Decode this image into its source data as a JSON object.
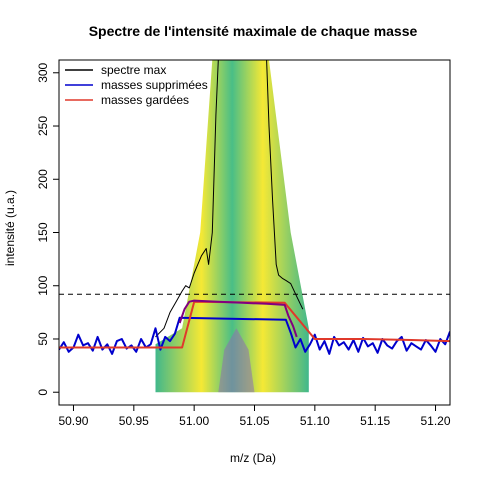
{
  "chart_data": {
    "type": "line",
    "title": "Spectre de l'intensité maximale de chaque masse",
    "xlabel": "m/z (Da)",
    "ylabel": "intensité (u.a.)",
    "xlim": [
      50.888,
      51.212
    ],
    "ylim": [
      -12,
      312
    ],
    "x_ticks": [
      50.9,
      50.95,
      51.0,
      51.05,
      51.1,
      51.15,
      51.2
    ],
    "x_tick_labels": [
      "50.90",
      "50.95",
      "51.00",
      "51.05",
      "51.10",
      "51.15",
      "51.20"
    ],
    "y_ticks": [
      0,
      50,
      100,
      150,
      200,
      250,
      300
    ],
    "y_tick_labels": [
      "0",
      "50",
      "100",
      "150",
      "200",
      "250",
      "300"
    ],
    "threshold": {
      "value": 92,
      "style": "dashed",
      "color": "#000000"
    },
    "legend": {
      "position": "top-left",
      "entries": [
        {
          "label": "spectre max",
          "color": "#000000"
        },
        {
          "label": "masses supprimées",
          "color": "#0000cd"
        },
        {
          "label": "masses gardées",
          "color": "#e0392b"
        }
      ]
    },
    "series": [
      {
        "name": "spectre max",
        "color": "#000000",
        "x": [
          50.968,
          50.975,
          50.98,
          50.985,
          50.99,
          50.993,
          50.996,
          51.0,
          51.003,
          51.006,
          51.01,
          51.012,
          51.015,
          51.018,
          51.02,
          51.03,
          51.05,
          51.06,
          51.062,
          51.065,
          51.068,
          51.07,
          51.073,
          51.076,
          51.08,
          51.085,
          51.09
        ],
        "y": [
          52,
          60,
          75,
          85,
          95,
          100,
          98,
          112,
          120,
          128,
          135,
          120,
          150,
          260,
          312,
          312,
          312,
          312,
          250,
          180,
          120,
          110,
          107,
          105,
          102,
          90,
          78
        ]
      },
      {
        "name": "masses supprimées",
        "color": "#0000cd",
        "x": [
          50.888,
          50.892,
          50.896,
          50.9,
          50.904,
          50.908,
          50.912,
          50.916,
          50.92,
          50.924,
          50.928,
          50.932,
          50.936,
          50.94,
          50.944,
          50.948,
          50.952,
          50.956,
          50.96,
          50.964,
          50.968,
          50.972,
          50.976,
          50.98,
          50.984,
          50.988,
          51.076,
          51.08,
          51.084,
          51.088,
          51.092,
          51.096,
          51.1,
          51.104,
          51.108,
          51.112,
          51.116,
          51.12,
          51.124,
          51.128,
          51.132,
          51.136,
          51.14,
          51.144,
          51.148,
          51.152,
          51.156,
          51.16,
          51.164,
          51.168,
          51.172,
          51.176,
          51.18,
          51.184,
          51.188,
          51.192,
          51.196,
          51.2,
          51.204,
          51.208,
          51.212
        ],
        "y": [
          40,
          47,
          38,
          42,
          54,
          44,
          46,
          39,
          52,
          40,
          45,
          36,
          48,
          50,
          41,
          44,
          38,
          50,
          42,
          45,
          60,
          40,
          52,
          48,
          55,
          70,
          68,
          56,
          42,
          50,
          38,
          45,
          54,
          40,
          48,
          36,
          52,
          44,
          47,
          40,
          49,
          38,
          51,
          43,
          46,
          37,
          50,
          44,
          41,
          48,
          52,
          39,
          46,
          43,
          40,
          49,
          44,
          38,
          50,
          45,
          57
        ]
      },
      {
        "name": "masses gardées",
        "color": "#e0392b",
        "x": [
          50.888,
          50.99,
          51.0,
          51.075,
          51.1,
          51.14,
          51.18,
          51.212
        ],
        "y": [
          42,
          42,
          85,
          84,
          50,
          50,
          49,
          48
        ]
      },
      {
        "name": "",
        "color": "#800080",
        "x": [
          50.988,
          50.992,
          50.996,
          51.0,
          51.02,
          51.04,
          51.06,
          51.075,
          51.078,
          51.082,
          51.085
        ],
        "y": [
          65,
          78,
          85,
          86,
          85,
          84,
          83,
          82,
          72,
          62,
          52
        ]
      }
    ],
    "grid": false
  }
}
